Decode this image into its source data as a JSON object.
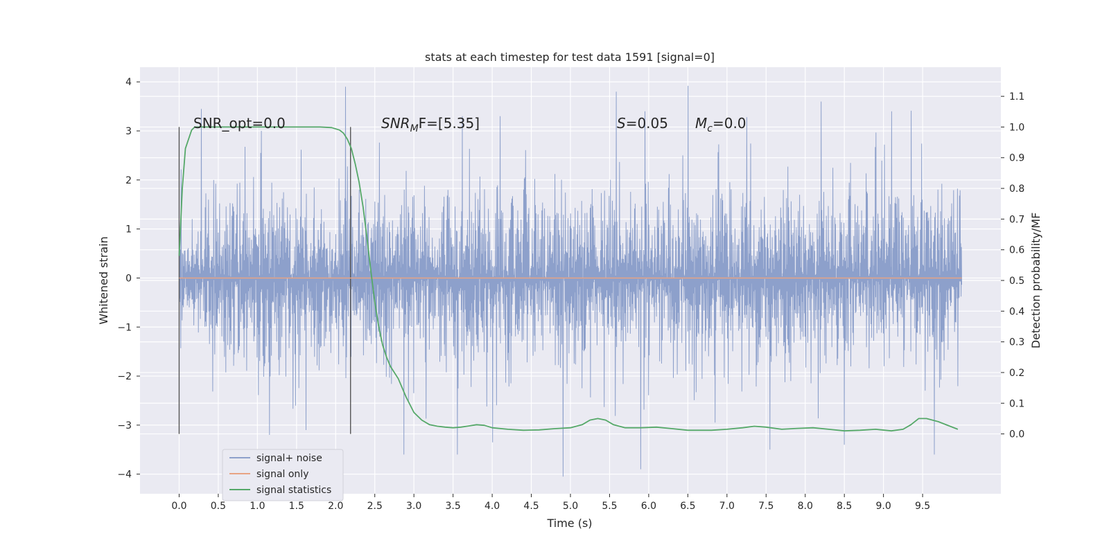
{
  "chart_data": {
    "type": "line",
    "title": "stats at each timestep for test data 1591 [signal=0]",
    "xlabel": "Time (s)",
    "ylabel": "Whitened strain",
    "y2label": "Detection probability/MF",
    "xlim": [
      -0.5,
      10.5
    ],
    "ylim": [
      -4.4,
      4.3
    ],
    "y2lim": [
      -0.195,
      1.195
    ],
    "x_ticks": [
      "0.0",
      "0.5",
      "1.0",
      "1.5",
      "2.0",
      "2.5",
      "3.0",
      "3.5",
      "4.0",
      "4.5",
      "5.0",
      "5.5",
      "6.0",
      "6.5",
      "7.0",
      "7.5",
      "8.0",
      "8.5",
      "9.0",
      "9.5"
    ],
    "x_tick_values": [
      0.0,
      0.5,
      1.0,
      1.5,
      2.0,
      2.5,
      3.0,
      3.5,
      4.0,
      4.5,
      5.0,
      5.5,
      6.0,
      6.5,
      7.0,
      7.5,
      8.0,
      8.5,
      9.0,
      9.5
    ],
    "y_ticks": [
      "−4",
      "−3",
      "−2",
      "−1",
      "0",
      "1",
      "2",
      "3",
      "4"
    ],
    "y_tick_values": [
      -4,
      -3,
      -2,
      -1,
      0,
      1,
      2,
      3,
      4
    ],
    "y2_ticks": [
      "0.0",
      "0.1",
      "0.2",
      "0.3",
      "0.4",
      "0.5",
      "0.6",
      "0.7",
      "0.8",
      "0.9",
      "1.0",
      "1.1"
    ],
    "y2_tick_values": [
      0.0,
      0.1,
      0.2,
      0.3,
      0.4,
      0.5,
      0.6,
      0.7,
      0.8,
      0.9,
      1.0,
      1.1
    ],
    "grid": true,
    "background": "#eaeaf2",
    "legend_position": "lower-left",
    "annotations": {
      "snr_opt": "SNR_opt=0.0",
      "snr_mf_main": "SNR",
      "snr_mf_sub": "M",
      "snr_mf_rest": "F=[5.35]",
      "s_main": "S",
      "s_rest": "=0.05",
      "mc_main": "M",
      "mc_sub": "c",
      "mc_rest": "=0.0"
    },
    "vertical_markers": [
      0.0,
      2.19
    ],
    "series": [
      {
        "name": "signal+ noise",
        "color": "#8da0cb",
        "style": "noise",
        "x_range": [
          0.0,
          10.0
        ],
        "peaks": [
          [
            0.28,
            3.45
          ],
          [
            2.12,
            3.9
          ],
          [
            5.58,
            3.8
          ],
          [
            6.5,
            3.92
          ],
          [
            5.95,
            3.4
          ],
          [
            8.2,
            3.6
          ],
          [
            9.1,
            3.4
          ],
          [
            3.62,
            3.3
          ],
          [
            4.1,
            3.3
          ],
          [
            1.05,
            3.0
          ]
        ],
        "troughs": [
          [
            4.9,
            -4.05
          ],
          [
            2.87,
            -3.6
          ],
          [
            3.55,
            -3.6
          ],
          [
            5.9,
            -3.9
          ],
          [
            9.65,
            -3.6
          ],
          [
            7.55,
            -3.5
          ],
          [
            8.5,
            -3.4
          ],
          [
            1.15,
            -3.2
          ],
          [
            1.62,
            -3.1
          ],
          [
            4.0,
            -3.35
          ]
        ]
      },
      {
        "name": "signal only",
        "color": "#e8a383",
        "style": "line",
        "x": [
          0.0,
          10.0
        ],
        "y": [
          0.0,
          0.0
        ]
      },
      {
        "name": "signal statistics",
        "color": "#55a868",
        "style": "line",
        "axis": "right",
        "x": [
          0.0,
          0.04,
          0.08,
          0.12,
          0.16,
          0.2,
          0.3,
          0.5,
          1.0,
          1.5,
          1.8,
          1.95,
          2.05,
          2.1,
          2.15,
          2.2,
          2.25,
          2.3,
          2.35,
          2.4,
          2.45,
          2.5,
          2.55,
          2.6,
          2.65,
          2.7,
          2.8,
          2.9,
          3.0,
          3.1,
          3.2,
          3.3,
          3.4,
          3.5,
          3.6,
          3.7,
          3.8,
          3.9,
          4.0,
          4.2,
          4.4,
          4.6,
          4.8,
          5.0,
          5.15,
          5.25,
          5.35,
          5.45,
          5.55,
          5.7,
          5.9,
          6.1,
          6.3,
          6.5,
          6.8,
          7.0,
          7.2,
          7.35,
          7.5,
          7.7,
          7.9,
          8.1,
          8.3,
          8.5,
          8.7,
          8.9,
          9.1,
          9.25,
          9.35,
          9.45,
          9.55,
          9.7,
          9.85,
          9.95
        ],
        "y": [
          0.58,
          0.8,
          0.93,
          0.96,
          0.99,
          1.0,
          1.0,
          1.0,
          1.0,
          1.0,
          1.0,
          0.998,
          0.99,
          0.98,
          0.96,
          0.93,
          0.88,
          0.82,
          0.74,
          0.64,
          0.53,
          0.43,
          0.35,
          0.29,
          0.25,
          0.22,
          0.18,
          0.12,
          0.07,
          0.045,
          0.03,
          0.025,
          0.022,
          0.02,
          0.022,
          0.026,
          0.03,
          0.028,
          0.02,
          0.015,
          0.012,
          0.013,
          0.017,
          0.02,
          0.03,
          0.045,
          0.05,
          0.045,
          0.03,
          0.02,
          0.02,
          0.022,
          0.017,
          0.012,
          0.012,
          0.015,
          0.02,
          0.025,
          0.022,
          0.015,
          0.018,
          0.02,
          0.015,
          0.01,
          0.012,
          0.015,
          0.01,
          0.015,
          0.03,
          0.05,
          0.05,
          0.04,
          0.025,
          0.015
        ]
      }
    ]
  }
}
